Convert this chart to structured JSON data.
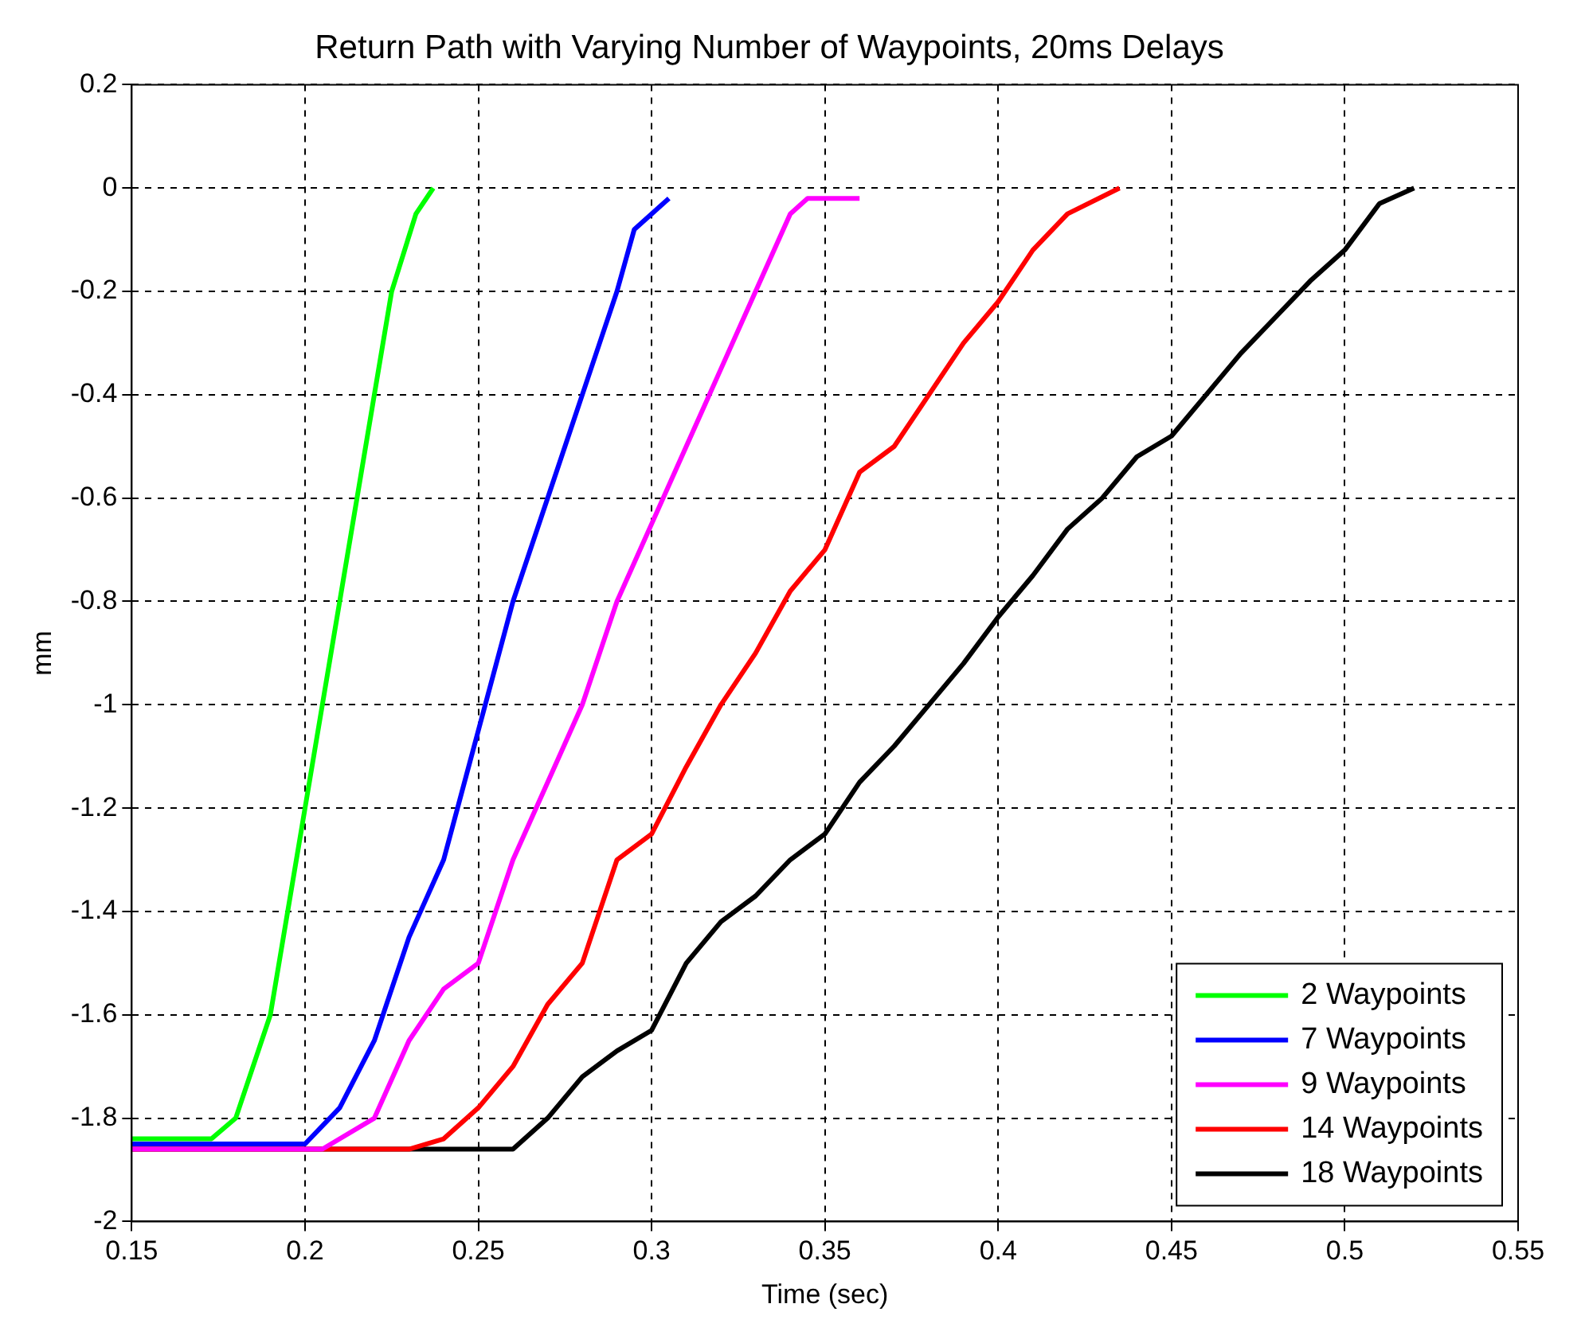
{
  "chart_data": {
    "type": "line",
    "title": "Return Path with Varying Number of Waypoints, 20ms Delays",
    "xlabel": "Time (sec)",
    "ylabel": "mm",
    "xlim": [
      0.15,
      0.55
    ],
    "xticks": [
      0.15,
      0.2,
      0.25,
      0.3,
      0.35,
      0.4,
      0.45,
      0.5,
      0.55
    ],
    "ylim": [
      -2,
      0.2
    ],
    "yticks": [
      -2,
      -1.8,
      -1.6,
      -1.4,
      -1.2,
      -1,
      -0.8,
      -0.6,
      -0.4,
      -0.2,
      0,
      0.2
    ],
    "grid": true,
    "legend": "bottom right",
    "line_style": "solid",
    "marker": "none",
    "series": [
      {
        "name": "2 Waypoints",
        "color": "#00ff00",
        "x": [
          0.15,
          0.173,
          0.18,
          0.19,
          0.2,
          0.21,
          0.22,
          0.225,
          0.232,
          0.237
        ],
        "values": [
          -1.84,
          -1.84,
          -1.8,
          -1.6,
          -1.2,
          -0.8,
          -0.4,
          -0.2,
          -0.05,
          0
        ]
      },
      {
        "name": "7 Waypoints",
        "color": "#0000ff",
        "x": [
          0.15,
          0.2,
          0.21,
          0.22,
          0.23,
          0.24,
          0.25,
          0.26,
          0.27,
          0.28,
          0.29,
          0.295,
          0.305
        ],
        "values": [
          -1.85,
          -1.85,
          -1.78,
          -1.65,
          -1.45,
          -1.3,
          -1.05,
          -0.8,
          -0.6,
          -0.4,
          -0.2,
          -0.08,
          -0.02
        ]
      },
      {
        "name": "9 Waypoints",
        "color": "#ff00ff",
        "x": [
          0.15,
          0.205,
          0.22,
          0.23,
          0.24,
          0.25,
          0.26,
          0.27,
          0.28,
          0.29,
          0.3,
          0.31,
          0.32,
          0.33,
          0.34,
          0.345,
          0.36
        ],
        "values": [
          -1.86,
          -1.86,
          -1.8,
          -1.65,
          -1.55,
          -1.5,
          -1.3,
          -1.15,
          -1,
          -0.8,
          -0.65,
          -0.5,
          -0.35,
          -0.2,
          -0.05,
          -0.02,
          -0.02
        ]
      },
      {
        "name": "14 Waypoints",
        "color": "#ff0000",
        "x": [
          0.15,
          0.23,
          0.24,
          0.25,
          0.26,
          0.27,
          0.28,
          0.29,
          0.3,
          0.31,
          0.32,
          0.33,
          0.34,
          0.35,
          0.36,
          0.37,
          0.38,
          0.39,
          0.4,
          0.41,
          0.42,
          0.435
        ],
        "values": [
          -1.86,
          -1.86,
          -1.84,
          -1.78,
          -1.7,
          -1.58,
          -1.5,
          -1.3,
          -1.25,
          -1.12,
          -1,
          -0.9,
          -0.78,
          -0.7,
          -0.55,
          -0.5,
          -0.4,
          -0.3,
          -0.22,
          -0.12,
          -0.05,
          0
        ]
      },
      {
        "name": "18 Waypoints",
        "color": "#000000",
        "x": [
          0.15,
          0.26,
          0.27,
          0.28,
          0.29,
          0.3,
          0.31,
          0.32,
          0.33,
          0.34,
          0.35,
          0.36,
          0.37,
          0.38,
          0.39,
          0.4,
          0.41,
          0.42,
          0.43,
          0.44,
          0.45,
          0.46,
          0.47,
          0.48,
          0.49,
          0.5,
          0.51,
          0.52
        ],
        "values": [
          -1.86,
          -1.86,
          -1.8,
          -1.72,
          -1.67,
          -1.63,
          -1.5,
          -1.42,
          -1.37,
          -1.3,
          -1.25,
          -1.15,
          -1.08,
          -1,
          -0.92,
          -0.83,
          -0.75,
          -0.66,
          -0.6,
          -0.52,
          -0.48,
          -0.4,
          -0.32,
          -0.25,
          -0.18,
          -0.12,
          -0.03,
          0
        ]
      }
    ]
  }
}
